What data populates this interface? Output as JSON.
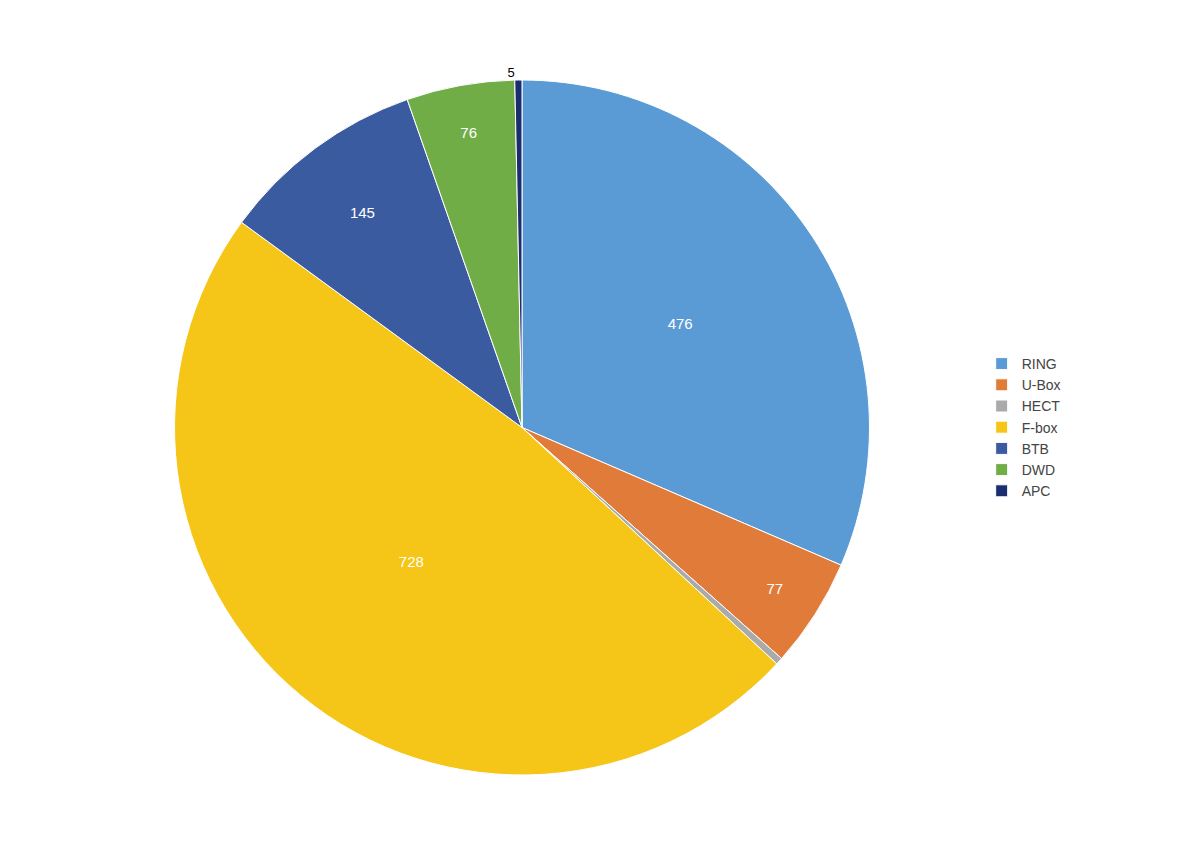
{
  "chart_data": {
    "type": "pie",
    "categories": [
      "RING",
      "U-Box",
      "HECT",
      "F-box",
      "BTB",
      "DWD",
      "APC"
    ],
    "values": [
      476,
      77,
      5,
      728,
      145,
      76,
      5
    ],
    "value_labels": [
      "476",
      "77",
      null,
      "728",
      "145",
      "76",
      "5"
    ],
    "colors": [
      "#5B9BD5",
      "#E07B39",
      "#AAAAAA",
      "#F5C518",
      "#3A5BA0",
      "#70AD47",
      "#1A2D6E"
    ],
    "data_labels": true,
    "legend": "right"
  }
}
